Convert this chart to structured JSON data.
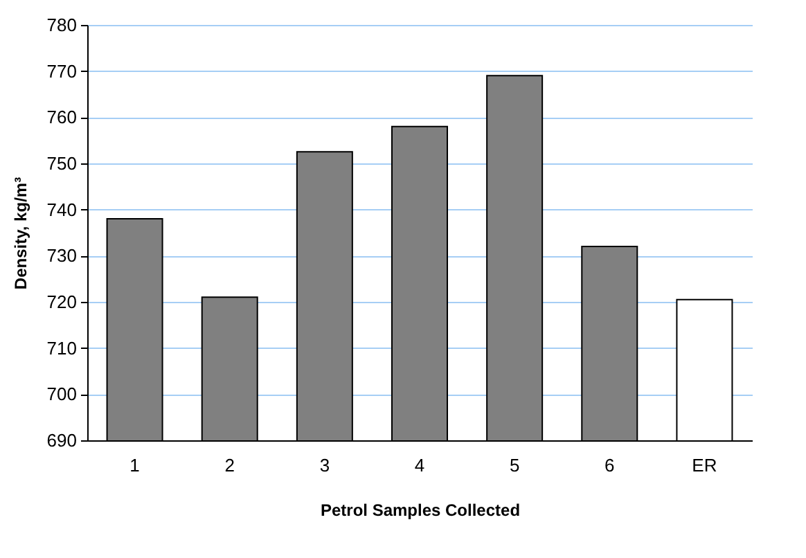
{
  "chart_data": {
    "type": "bar",
    "xlabel": "Petrol Samples Collected",
    "ylabel": "Density, kg/m³",
    "categories": [
      "1",
      "2",
      "3",
      "4",
      "5",
      "6",
      "ER"
    ],
    "values": [
      738,
      721,
      752.5,
      758,
      769,
      732,
      720.5
    ],
    "colors": [
      "#808080",
      "#808080",
      "#808080",
      "#808080",
      "#808080",
      "#808080",
      "#ffffff"
    ],
    "ylim": [
      690,
      780
    ],
    "yticks": [
      690,
      700,
      710,
      720,
      730,
      740,
      750,
      760,
      770,
      780
    ],
    "grid": "y"
  }
}
